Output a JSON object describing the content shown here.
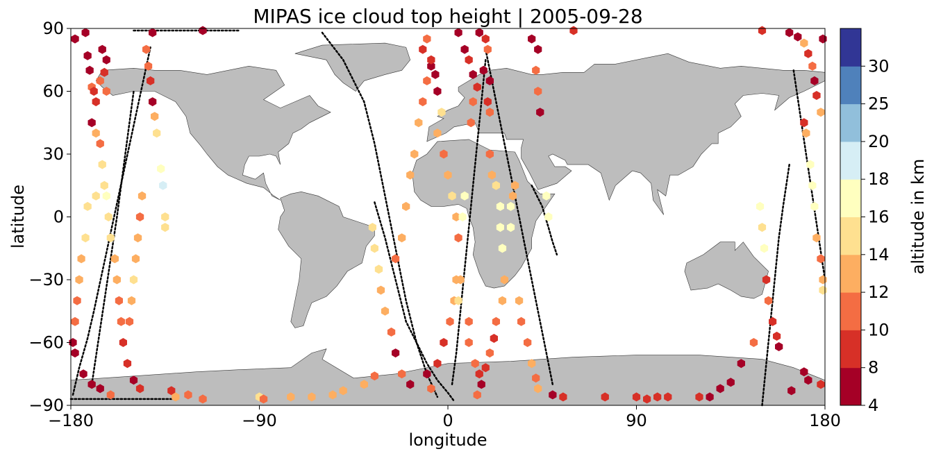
{
  "chart_data": {
    "type": "scatter",
    "title": "MIPAS ice cloud top height | 2005-09-28",
    "xlabel": "longitude",
    "ylabel": "latitude",
    "xlim": [
      -180,
      180
    ],
    "ylim": [
      -90,
      90
    ],
    "xticks": [
      -180,
      -90,
      0,
      90,
      180
    ],
    "yticks": [
      -90,
      -60,
      -30,
      0,
      30,
      60,
      90
    ],
    "xtick_labels": [
      "−180",
      "−90",
      "0",
      "90",
      "180"
    ],
    "ytick_labels": [
      "−90",
      "−60",
      "−30",
      "0",
      "30",
      "60",
      "90"
    ],
    "grid": false,
    "colorbar": {
      "label": "altitude in km",
      "levels": [
        4,
        8,
        10,
        12,
        14,
        16,
        18,
        20,
        25,
        30
      ],
      "tick_labels": [
        "4",
        "8",
        "10",
        "12",
        "14",
        "16",
        "18",
        "20",
        "25",
        "30"
      ],
      "colors": [
        "#a50026",
        "#d73027",
        "#f46d43",
        "#fdae61",
        "#fee090",
        "#ffffbf",
        "#d6eef5",
        "#91bfdb",
        "#4f81bb",
        "#313695"
      ]
    },
    "colors": {
      "land": "#bdbdbd",
      "coast": "#333333",
      "track": "#000000",
      "ocean": "#ffffff"
    },
    "tracks": [
      {
        "x": [
          -179,
          -176,
          -172,
          -169,
          -166,
          -163,
          -160,
          -157,
          -154,
          -151,
          -148,
          -145,
          -142
        ],
        "y": [
          -85,
          -72,
          -58,
          -45,
          -31,
          -17,
          -3,
          11,
          25,
          39,
          53,
          67,
          81
        ]
      },
      {
        "x": [
          -170,
          -164,
          -158,
          -154,
          -150
        ],
        "y": [
          -80,
          -40,
          0,
          30,
          60
        ]
      },
      {
        "x": [
          -60,
          -50,
          -40,
          -35,
          -30,
          -25,
          -20,
          -15,
          -10,
          -5
        ],
        "y": [
          88,
          75,
          55,
          35,
          10,
          -15,
          -40,
          -60,
          -75,
          -86
        ]
      },
      {
        "x": [
          -35,
          -30,
          -25,
          -20,
          -15,
          -10,
          -5,
          0,
          3
        ],
        "y": [
          7,
          -10,
          -30,
          -50,
          -60,
          -70,
          -78,
          -84,
          -88
        ]
      },
      {
        "x": [
          2,
          4,
          6,
          8,
          10,
          12,
          14,
          16,
          18
        ],
        "y": [
          -80,
          -65,
          -45,
          -25,
          -5,
          15,
          35,
          55,
          75
        ]
      },
      {
        "x": [
          18,
          22,
          26,
          30,
          34,
          38,
          42,
          46,
          50
        ],
        "y": [
          80,
          60,
          40,
          20,
          0,
          -20,
          -40,
          -60,
          -80
        ]
      },
      {
        "x": [
          40,
          45,
          48,
          50,
          52
        ],
        "y": [
          15,
          5,
          -5,
          -12,
          -18
        ]
      },
      {
        "x": [
          150,
          152,
          154,
          156,
          158,
          160,
          163
        ],
        "y": [
          -90,
          -70,
          -50,
          -30,
          -10,
          5,
          25
        ]
      },
      {
        "x": [
          165,
          168,
          171,
          174,
          177,
          180
        ],
        "y": [
          70,
          50,
          30,
          10,
          -10,
          -30
        ]
      },
      {
        "x": [
          -180,
          -170,
          -160,
          -150,
          -140,
          -130
        ],
        "y": [
          -87,
          -87,
          -87,
          -87,
          -87,
          -87
        ]
      },
      {
        "x": [
          -150,
          -140,
          -130,
          -120,
          -110,
          -100
        ],
        "y": [
          89,
          89,
          89,
          89,
          89,
          89
        ]
      }
    ],
    "points": [
      {
        "x": -178,
        "y": 85,
        "v": 6
      },
      {
        "x": -173,
        "y": 88,
        "v": 6
      },
      {
        "x": -172,
        "y": 77,
        "v": 6
      },
      {
        "x": -171,
        "y": 70,
        "v": 6
      },
      {
        "x": -170,
        "y": 62,
        "v": 10
      },
      {
        "x": -169,
        "y": 60,
        "v": 9
      },
      {
        "x": -168,
        "y": 55,
        "v": 9
      },
      {
        "x": -170,
        "y": 45,
        "v": 6
      },
      {
        "x": -168,
        "y": 40,
        "v": 13
      },
      {
        "x": -166,
        "y": 35,
        "v": 11
      },
      {
        "x": -165,
        "y": 80,
        "v": 6
      },
      {
        "x": -163,
        "y": 75,
        "v": 6
      },
      {
        "x": -164,
        "y": 69,
        "v": 9
      },
      {
        "x": -166,
        "y": 65,
        "v": 11
      },
      {
        "x": -163,
        "y": 60,
        "v": 11
      },
      {
        "x": -165,
        "y": 25,
        "v": 15
      },
      {
        "x": -168,
        "y": 10,
        "v": 15
      },
      {
        "x": -172,
        "y": 5,
        "v": 15
      },
      {
        "x": -173,
        "y": -10,
        "v": 15
      },
      {
        "x": -175,
        "y": -20,
        "v": 13
      },
      {
        "x": -176,
        "y": -30,
        "v": 13
      },
      {
        "x": -177,
        "y": -40,
        "v": 11
      },
      {
        "x": -178,
        "y": -50,
        "v": 11
      },
      {
        "x": -179,
        "y": -60,
        "v": 6
      },
      {
        "x": -178,
        "y": -65,
        "v": 6
      },
      {
        "x": -174,
        "y": -75,
        "v": 6
      },
      {
        "x": -170,
        "y": -80,
        "v": 6
      },
      {
        "x": -166,
        "y": -82,
        "v": 6
      },
      {
        "x": -161,
        "y": -85,
        "v": 11
      },
      {
        "x": -164,
        "y": 15,
        "v": 15
      },
      {
        "x": -163,
        "y": 10,
        "v": 17
      },
      {
        "x": -162,
        "y": 0,
        "v": 15
      },
      {
        "x": -161,
        "y": -10,
        "v": 15
      },
      {
        "x": -159,
        "y": -20,
        "v": 13
      },
      {
        "x": -158,
        "y": -30,
        "v": 13
      },
      {
        "x": -157,
        "y": -40,
        "v": 11
      },
      {
        "x": -156,
        "y": -50,
        "v": 11
      },
      {
        "x": -155,
        "y": -60,
        "v": 9
      },
      {
        "x": -153,
        "y": -70,
        "v": 9
      },
      {
        "x": -150,
        "y": -78,
        "v": 6
      },
      {
        "x": -147,
        "y": -82,
        "v": 9
      },
      {
        "x": -146,
        "y": 10,
        "v": 13
      },
      {
        "x": -147,
        "y": 0,
        "v": 11
      },
      {
        "x": -148,
        "y": -10,
        "v": 13
      },
      {
        "x": -149,
        "y": -20,
        "v": 13
      },
      {
        "x": -150,
        "y": -30,
        "v": 15
      },
      {
        "x": -151,
        "y": -40,
        "v": 13
      },
      {
        "x": -152,
        "y": -50,
        "v": 11
      },
      {
        "x": -141,
        "y": 88,
        "v": 6
      },
      {
        "x": -144,
        "y": 80,
        "v": 11
      },
      {
        "x": -143,
        "y": 72,
        "v": 11
      },
      {
        "x": -142,
        "y": 65,
        "v": 9
      },
      {
        "x": -141,
        "y": 55,
        "v": 6
      },
      {
        "x": -140,
        "y": 48,
        "v": 13
      },
      {
        "x": -139,
        "y": 40,
        "v": 15
      },
      {
        "x": -137,
        "y": 23,
        "v": 17
      },
      {
        "x": -136,
        "y": 15,
        "v": 19
      },
      {
        "x": -135,
        "y": 0,
        "v": 15
      },
      {
        "x": -135,
        "y": -5,
        "v": 15
      },
      {
        "x": -132,
        "y": -83,
        "v": 9
      },
      {
        "x": -130,
        "y": -86,
        "v": 13
      },
      {
        "x": -124,
        "y": -85,
        "v": 11
      },
      {
        "x": -117,
        "y": -87,
        "v": 11
      },
      {
        "x": -117,
        "y": 89,
        "v": 6
      },
      {
        "x": -90,
        "y": -86,
        "v": 15
      },
      {
        "x": -88,
        "y": -87,
        "v": 11
      },
      {
        "x": -75,
        "y": -86,
        "v": 13
      },
      {
        "x": -65,
        "y": -86,
        "v": 13
      },
      {
        "x": -55,
        "y": -85,
        "v": 13
      },
      {
        "x": -50,
        "y": -83,
        "v": 13
      },
      {
        "x": -40,
        "y": -80,
        "v": 13
      },
      {
        "x": -35,
        "y": -76,
        "v": 11
      },
      {
        "x": -36,
        "y": -5,
        "v": 15
      },
      {
        "x": -35,
        "y": -15,
        "v": 15
      },
      {
        "x": -33,
        "y": -25,
        "v": 15
      },
      {
        "x": -32,
        "y": -35,
        "v": 13
      },
      {
        "x": -30,
        "y": -45,
        "v": 13
      },
      {
        "x": -27,
        "y": -55,
        "v": 11
      },
      {
        "x": -25,
        "y": -65,
        "v": 6
      },
      {
        "x": -22,
        "y": -75,
        "v": 11
      },
      {
        "x": -18,
        "y": -80,
        "v": 6
      },
      {
        "x": -25,
        "y": -20,
        "v": 11
      },
      {
        "x": -22,
        "y": -10,
        "v": 13
      },
      {
        "x": -20,
        "y": 5,
        "v": 13
      },
      {
        "x": -18,
        "y": 20,
        "v": 13
      },
      {
        "x": -16,
        "y": 30,
        "v": 13
      },
      {
        "x": -14,
        "y": 45,
        "v": 13
      },
      {
        "x": -12,
        "y": 55,
        "v": 11
      },
      {
        "x": -10,
        "y": 65,
        "v": 11
      },
      {
        "x": -8,
        "y": 72,
        "v": 6
      },
      {
        "x": -12,
        "y": 80,
        "v": 9
      },
      {
        "x": -10,
        "y": 85,
        "v": 11
      },
      {
        "x": -8,
        "y": 75,
        "v": 9
      },
      {
        "x": -6,
        "y": 68,
        "v": 6
      },
      {
        "x": -5,
        "y": 60,
        "v": 6
      },
      {
        "x": -3,
        "y": 50,
        "v": 15
      },
      {
        "x": -5,
        "y": 40,
        "v": 13
      },
      {
        "x": -2,
        "y": 30,
        "v": 11
      },
      {
        "x": 0,
        "y": 20,
        "v": 13
      },
      {
        "x": 2,
        "y": 10,
        "v": 15
      },
      {
        "x": 4,
        "y": 0,
        "v": 13
      },
      {
        "x": 5,
        "y": -10,
        "v": 11
      },
      {
        "x": 4,
        "y": -30,
        "v": 13
      },
      {
        "x": 3,
        "y": -40,
        "v": 13
      },
      {
        "x": 1,
        "y": -50,
        "v": 11
      },
      {
        "x": -2,
        "y": -60,
        "v": 9
      },
      {
        "x": -5,
        "y": -70,
        "v": 9
      },
      {
        "x": -10,
        "y": -75,
        "v": 6
      },
      {
        "x": -8,
        "y": -82,
        "v": 11
      },
      {
        "x": 5,
        "y": -40,
        "v": 15
      },
      {
        "x": 6,
        "y": -30,
        "v": 13
      },
      {
        "x": 7,
        "y": 0,
        "v": 17
      },
      {
        "x": 8,
        "y": 10,
        "v": 17
      },
      {
        "x": 5,
        "y": 88,
        "v": 6
      },
      {
        "x": 8,
        "y": 80,
        "v": 6
      },
      {
        "x": 10,
        "y": 75,
        "v": 9
      },
      {
        "x": 12,
        "y": 68,
        "v": 6
      },
      {
        "x": 14,
        "y": 62,
        "v": 9
      },
      {
        "x": 12,
        "y": 55,
        "v": 11
      },
      {
        "x": 11,
        "y": 45,
        "v": 11
      },
      {
        "x": 15,
        "y": 88,
        "v": 6
      },
      {
        "x": 18,
        "y": 85,
        "v": 9
      },
      {
        "x": 19,
        "y": 80,
        "v": 11
      },
      {
        "x": 17,
        "y": 70,
        "v": 6
      },
      {
        "x": 20,
        "y": 65,
        "v": 6
      },
      {
        "x": 19,
        "y": 55,
        "v": 9
      },
      {
        "x": 20,
        "y": 50,
        "v": 11
      },
      {
        "x": 20,
        "y": 30,
        "v": 11
      },
      {
        "x": 21,
        "y": 20,
        "v": 13
      },
      {
        "x": 23,
        "y": 15,
        "v": 15
      },
      {
        "x": 25,
        "y": 5,
        "v": 17
      },
      {
        "x": 25,
        "y": -5,
        "v": 17
      },
      {
        "x": 26,
        "y": -15,
        "v": 17
      },
      {
        "x": 27,
        "y": -30,
        "v": 13
      },
      {
        "x": 26,
        "y": -40,
        "v": 13
      },
      {
        "x": 23,
        "y": -50,
        "v": 11
      },
      {
        "x": 22,
        "y": -58,
        "v": 9
      },
      {
        "x": 20,
        "y": -65,
        "v": 11
      },
      {
        "x": 18,
        "y": -72,
        "v": 9
      },
      {
        "x": 16,
        "y": -80,
        "v": 6
      },
      {
        "x": 14,
        "y": -85,
        "v": 11
      },
      {
        "x": 10,
        "y": -50,
        "v": 11
      },
      {
        "x": 10,
        "y": -60,
        "v": 11
      },
      {
        "x": 13,
        "y": -70,
        "v": 11
      },
      {
        "x": 15,
        "y": -75,
        "v": 9
      },
      {
        "x": 30,
        "y": 5,
        "v": 17
      },
      {
        "x": 30,
        "y": -5,
        "v": 17
      },
      {
        "x": 31,
        "y": 10,
        "v": 13
      },
      {
        "x": 32,
        "y": 15,
        "v": 13
      },
      {
        "x": 34,
        "y": -40,
        "v": 13
      },
      {
        "x": 35,
        "y": -50,
        "v": 11
      },
      {
        "x": 38,
        "y": -60,
        "v": 11
      },
      {
        "x": 40,
        "y": -70,
        "v": 13
      },
      {
        "x": 42,
        "y": -77,
        "v": 11
      },
      {
        "x": 43,
        "y": -82,
        "v": 13
      },
      {
        "x": 40,
        "y": 85,
        "v": 6
      },
      {
        "x": 43,
        "y": 80,
        "v": 6
      },
      {
        "x": 42,
        "y": 70,
        "v": 11
      },
      {
        "x": 43,
        "y": 60,
        "v": 11
      },
      {
        "x": 44,
        "y": 50,
        "v": 6
      },
      {
        "x": 47,
        "y": 10,
        "v": 17
      },
      {
        "x": 48,
        "y": 0,
        "v": 17
      },
      {
        "x": 50,
        "y": -85,
        "v": 6
      },
      {
        "x": 55,
        "y": -86,
        "v": 9
      },
      {
        "x": 60,
        "y": 89,
        "v": 9
      },
      {
        "x": 75,
        "y": -86,
        "v": 9
      },
      {
        "x": 90,
        "y": -86,
        "v": 9
      },
      {
        "x": 95,
        "y": -87,
        "v": 9
      },
      {
        "x": 100,
        "y": -86,
        "v": 9
      },
      {
        "x": 105,
        "y": -86,
        "v": 9
      },
      {
        "x": 120,
        "y": -86,
        "v": 9
      },
      {
        "x": 125,
        "y": -86,
        "v": 6
      },
      {
        "x": 130,
        "y": -82,
        "v": 6
      },
      {
        "x": 135,
        "y": -79,
        "v": 6
      },
      {
        "x": 140,
        "y": -70,
        "v": 6
      },
      {
        "x": 146,
        "y": -60,
        "v": 11
      },
      {
        "x": 149,
        "y": 5,
        "v": 17
      },
      {
        "x": 150,
        "y": -5,
        "v": 15
      },
      {
        "x": 151,
        "y": -15,
        "v": 17
      },
      {
        "x": 152,
        "y": -30,
        "v": 9
      },
      {
        "x": 153,
        "y": -40,
        "v": 11
      },
      {
        "x": 155,
        "y": -50,
        "v": 9
      },
      {
        "x": 157,
        "y": -57,
        "v": 9
      },
      {
        "x": 158,
        "y": -62,
        "v": 6
      },
      {
        "x": 150,
        "y": 89,
        "v": 9
      },
      {
        "x": 163,
        "y": 88,
        "v": 6
      },
      {
        "x": 167,
        "y": 86,
        "v": 6
      },
      {
        "x": 170,
        "y": 83,
        "v": 13
      },
      {
        "x": 172,
        "y": 78,
        "v": 9
      },
      {
        "x": 174,
        "y": 72,
        "v": 11
      },
      {
        "x": 175,
        "y": 65,
        "v": 6
      },
      {
        "x": 176,
        "y": 58,
        "v": 9
      },
      {
        "x": 178,
        "y": 50,
        "v": 13
      },
      {
        "x": 170,
        "y": 45,
        "v": 9
      },
      {
        "x": 171,
        "y": 40,
        "v": 13
      },
      {
        "x": 173,
        "y": 25,
        "v": 17
      },
      {
        "x": 174,
        "y": 15,
        "v": 17
      },
      {
        "x": 175,
        "y": 5,
        "v": 17
      },
      {
        "x": 176,
        "y": -10,
        "v": 13
      },
      {
        "x": 178,
        "y": -20,
        "v": 11
      },
      {
        "x": 179,
        "y": -30,
        "v": 13
      },
      {
        "x": 179,
        "y": -35,
        "v": 15
      },
      {
        "x": 164,
        "y": -83,
        "v": 6
      },
      {
        "x": 170,
        "y": -74,
        "v": 6
      },
      {
        "x": 172,
        "y": -78,
        "v": 6
      },
      {
        "x": 178,
        "y": -80,
        "v": 9
      },
      {
        "x": 179,
        "y": 85,
        "v": 6
      }
    ]
  }
}
